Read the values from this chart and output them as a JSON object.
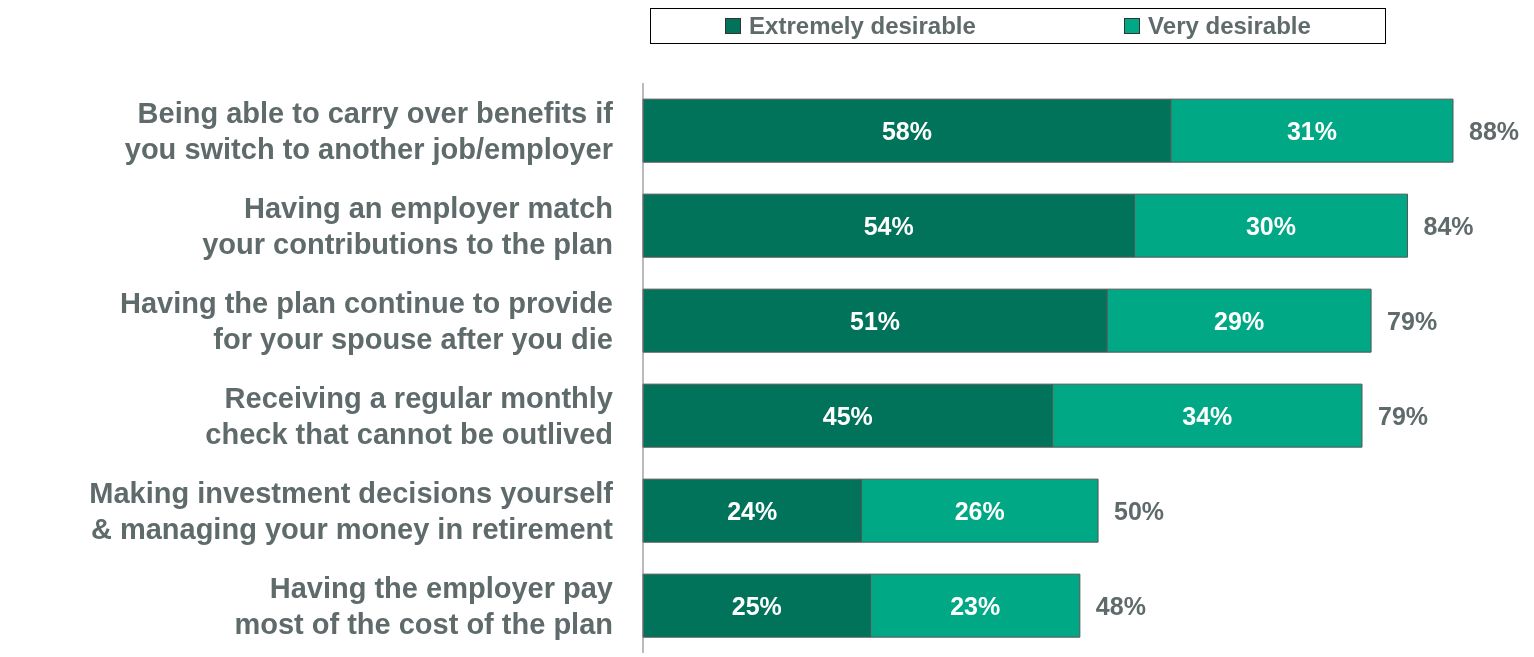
{
  "chart_data": {
    "type": "bar",
    "orientation": "horizontal",
    "stacked": true,
    "legend": "top",
    "categories": [
      "Being able to carry over benefits if you switch to another job/employer",
      "Having an employer match your contributions to the plan",
      "Having the plan continue to provide for your spouse after you die",
      "Receiving a regular monthly check that cannot be outlived",
      "Making investment decisions yourself & managing your money in retirement",
      "Having the employer pay most of the cost of the plan"
    ],
    "series": [
      {
        "name": "Extremely desirable",
        "color": "#00735a",
        "values": [
          58,
          54,
          51,
          45,
          24,
          25
        ],
        "value_labels": [
          "58%",
          "54%",
          "51%",
          "45%",
          "24%",
          "25%"
        ]
      },
      {
        "name": "Very desirable",
        "color": "#00a886",
        "values": [
          31,
          30,
          29,
          34,
          26,
          23
        ],
        "value_labels": [
          "31%",
          "30%",
          "29%",
          "34%",
          "26%",
          "23%"
        ]
      }
    ],
    "totals": [
      "88%",
      "84%",
      "79%",
      "79%",
      "50%",
      "48%"
    ]
  }
}
